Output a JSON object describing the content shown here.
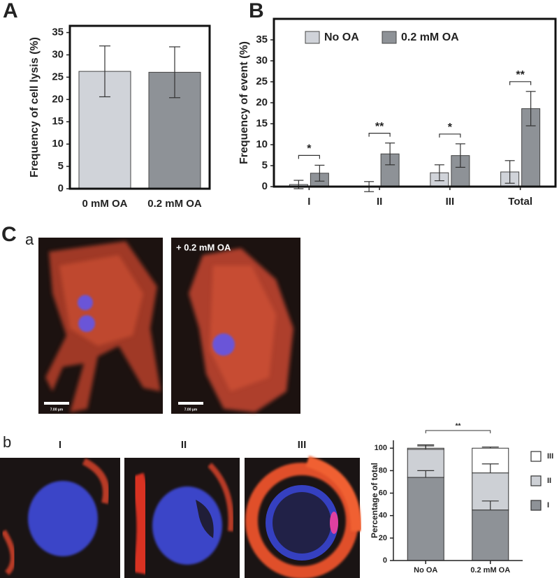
{
  "panel_labels": [
    "A",
    "B",
    "C",
    "a",
    "b"
  ],
  "micrographs": {
    "overlay_label": "+ 0.2 mM OA",
    "scale_bar_labels": [
      "7.00 µm",
      "7.00 µm"
    ],
    "stage_labels": [
      "I",
      "II",
      "III"
    ]
  },
  "chart_data": [
    {
      "type": "bar",
      "ylabel": "Frequency of cell lysis (%)",
      "categories": [
        "0 mM OA",
        "0.2 mM OA"
      ],
      "values": [
        26.3,
        26.1
      ],
      "errors": [
        5.7,
        5.7
      ],
      "colors": [
        "#d0d3d9",
        "#8e9297"
      ],
      "ylim": [
        0,
        36.5
      ],
      "yticks": [
        0,
        5,
        10,
        15,
        20,
        25,
        30,
        35
      ]
    },
    {
      "type": "grouped_bar",
      "ylabel": "Frequency of event (%)",
      "categories": [
        "I",
        "II",
        "III",
        "Total"
      ],
      "series": [
        {
          "name": "No OA",
          "color": "#d0d3d9",
          "values": [
            0.5,
            0,
            3.3,
            3.5
          ],
          "errors": [
            1,
            1.2,
            1.9,
            2.7
          ]
        },
        {
          "name": "0.2 mM OA",
          "color": "#8e9297",
          "values": [
            3.2,
            7.8,
            7.4,
            18.6
          ],
          "errors": [
            1.9,
            2.6,
            2.8,
            4.1
          ]
        }
      ],
      "significance": [
        "*",
        "**",
        "*",
        "**"
      ],
      "ylim": [
        0,
        40
      ],
      "yticks": [
        0,
        5,
        10,
        15,
        20,
        25,
        30,
        35
      ],
      "legend": "top"
    },
    {
      "type": "stacked_bar",
      "ylabel": "Percentage of total",
      "categories": [
        "No OA",
        "0.2 mM OA"
      ],
      "series": [
        {
          "name": "I",
          "color": "#8e9297",
          "values": [
            74,
            45
          ],
          "errors": [
            6,
            8
          ]
        },
        {
          "name": "II",
          "color": "#cdd0d5",
          "values": [
            25,
            33
          ],
          "errors": [
            3,
            8
          ]
        },
        {
          "name": "III",
          "color": "#ffffff",
          "values": [
            1,
            22
          ],
          "errors": [
            3,
            1
          ]
        }
      ],
      "significance": "**",
      "ylim": [
        0,
        107
      ],
      "yticks": [
        0,
        20,
        40,
        60,
        80,
        100
      ],
      "legend": "right"
    }
  ]
}
